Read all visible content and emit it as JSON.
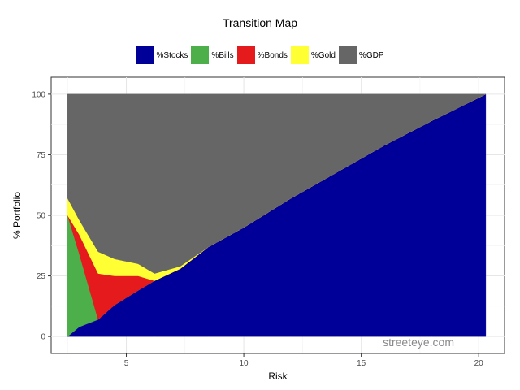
{
  "chart_data": {
    "type": "area",
    "title": "Transition Map",
    "xlabel": "Risk",
    "ylabel": "% Portfolio",
    "xlim": [
      1.8,
      21.1
    ],
    "ylim": [
      -7,
      107
    ],
    "xticks": [
      5,
      10,
      15,
      20
    ],
    "yticks": [
      0,
      25,
      50,
      75,
      100
    ],
    "stacked": true,
    "legend_position": "top",
    "grid": true,
    "annotation": "streeteye.com",
    "x": [
      2.5,
      3.0,
      3.8,
      4.5,
      5.5,
      6.2,
      7.3,
      8.5,
      10.0,
      12.0,
      14.0,
      16.0,
      18.0,
      20.3
    ],
    "series": [
      {
        "name": "%Stocks",
        "color": "#000099",
        "values": [
          0,
          4,
          7,
          13,
          19,
          23,
          28,
          37,
          45,
          57,
          68,
          79,
          89,
          100
        ]
      },
      {
        "name": "%Bills",
        "color": "#4daf4a",
        "values": [
          50,
          30,
          0,
          0,
          0,
          0,
          0,
          0,
          0,
          0,
          0,
          0,
          0,
          0
        ]
      },
      {
        "name": "%Bonds",
        "color": "#e41a1c",
        "values": [
          0,
          8,
          19,
          12,
          6,
          0,
          0,
          0,
          0,
          0,
          0,
          0,
          0,
          0
        ]
      },
      {
        "name": "%Gold",
        "color": "#ffff33",
        "values": [
          7,
          6,
          9,
          7,
          5,
          3,
          1,
          0,
          0,
          0,
          0,
          0,
          0,
          0
        ]
      },
      {
        "name": "%GDP",
        "color": "#666666",
        "values": [
          43,
          52,
          65,
          68,
          70,
          74,
          71,
          63,
          55,
          43,
          32,
          21,
          11,
          0
        ]
      }
    ]
  }
}
